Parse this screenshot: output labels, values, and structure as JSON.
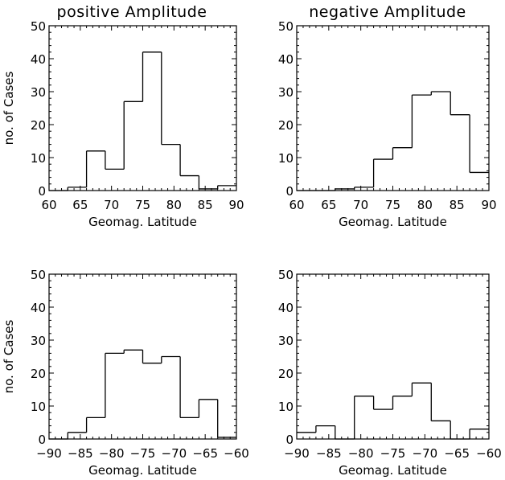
{
  "chart_data": [
    {
      "type": "histogram",
      "title": "positive Amplitude",
      "xlabel": "Geomag. Latitude",
      "ylabel": "no. of Cases",
      "xlim": [
        60,
        90
      ],
      "ylim": [
        0,
        50
      ],
      "xticks": [
        "60",
        "65",
        "70",
        "75",
        "80",
        "85",
        "90"
      ],
      "yticks": [
        "0",
        "10",
        "20",
        "30",
        "40",
        "50"
      ],
      "bin_edges": [
        60,
        63,
        66,
        69,
        72,
        75,
        78,
        81,
        84,
        87,
        90
      ],
      "values": [
        0,
        1,
        12,
        6.5,
        27,
        42,
        14,
        4.5,
        0.5,
        1.5
      ]
    },
    {
      "type": "histogram",
      "title": "negative Amplitude",
      "xlabel": "Geomag. Latitude",
      "ylabel": "",
      "xlim": [
        60,
        90
      ],
      "ylim": [
        0,
        50
      ],
      "xticks": [
        "60",
        "65",
        "70",
        "75",
        "80",
        "85",
        "90"
      ],
      "yticks": [
        "0",
        "10",
        "20",
        "30",
        "40",
        "50"
      ],
      "bin_edges": [
        60,
        63,
        66,
        69,
        72,
        75,
        78,
        81,
        84,
        87,
        90
      ],
      "values": [
        0,
        0,
        0.5,
        1,
        9.5,
        13,
        29,
        30,
        23,
        5.5
      ]
    },
    {
      "type": "histogram",
      "title": "",
      "xlabel": "Geomag. Latitude",
      "ylabel": "no. of Cases",
      "xlim": [
        -90,
        -60
      ],
      "ylim": [
        0,
        50
      ],
      "xticks": [
        "−90",
        "−85",
        "−80",
        "−75",
        "−70",
        "−65",
        "−60"
      ],
      "yticks": [
        "0",
        "10",
        "20",
        "30",
        "40",
        "50"
      ],
      "bin_edges": [
        -90,
        -87,
        -84,
        -81,
        -78,
        -75,
        -72,
        -69,
        -66,
        -63,
        -60
      ],
      "values": [
        0,
        2,
        6.5,
        26,
        27,
        23,
        25,
        6.5,
        12,
        0.5
      ]
    },
    {
      "type": "histogram",
      "title": "",
      "xlabel": "Geomag. Latitude",
      "ylabel": "",
      "xlim": [
        -90,
        -60
      ],
      "ylim": [
        0,
        50
      ],
      "xticks": [
        "−90",
        "−85",
        "−80",
        "−75",
        "−70",
        "−65",
        "−60"
      ],
      "yticks": [
        "0",
        "10",
        "20",
        "30",
        "40",
        "50"
      ],
      "bin_edges": [
        -90,
        -87,
        -84,
        -81,
        -78,
        -75,
        -72,
        -69,
        -66,
        -63,
        -60
      ],
      "values": [
        2,
        4,
        0,
        13,
        9,
        13,
        17,
        5.5,
        0,
        3
      ]
    }
  ]
}
